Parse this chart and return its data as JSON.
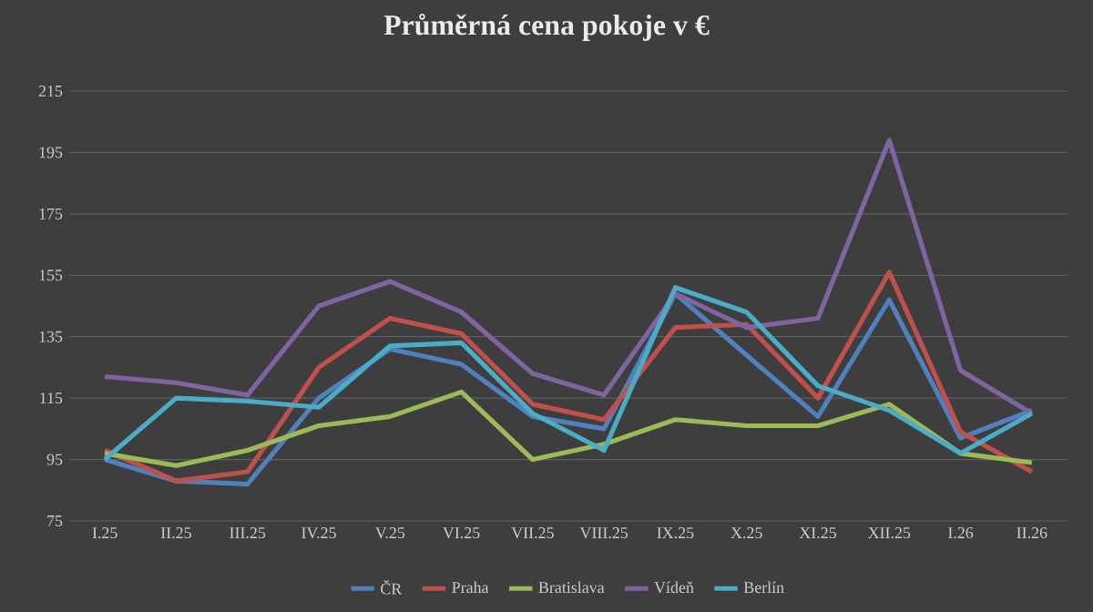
{
  "chart_data": {
    "type": "line",
    "title": "Průměrná cena pokoje v €",
    "categories": [
      "I.25",
      "II.25",
      "III.25",
      "IV.25",
      "V.25",
      "VI.25",
      "VII.25",
      "VIII.25",
      "IX.25",
      "X.25",
      "XI.25",
      "XII.25",
      "I.26",
      "II.26"
    ],
    "series": [
      {
        "name": "ČR",
        "color": "#4f81bd",
        "values": [
          95,
          88,
          87,
          115,
          131,
          126,
          109,
          105,
          149,
          129,
          109,
          147,
          102,
          111
        ]
      },
      {
        "name": "Praha",
        "color": "#c0504d",
        "values": [
          98,
          88,
          91,
          125,
          141,
          136,
          113,
          108,
          138,
          139,
          115,
          156,
          104,
          91
        ]
      },
      {
        "name": "Bratislava",
        "color": "#9bbb59",
        "values": [
          97,
          93,
          98,
          106,
          109,
          117,
          95,
          100,
          108,
          106,
          106,
          113,
          97,
          94
        ]
      },
      {
        "name": "Vídeň",
        "color": "#8064a2",
        "values": [
          122,
          120,
          116,
          145,
          153,
          143,
          123,
          116,
          149,
          138,
          141,
          199,
          124,
          110
        ]
      },
      {
        "name": "Berlín",
        "color": "#4bacc6",
        "values": [
          95,
          115,
          114,
          112,
          132,
          133,
          110,
          98,
          151,
          143,
          119,
          111,
          97,
          110
        ]
      }
    ],
    "ylim": [
      75,
      215
    ],
    "yticks": [
      75,
      95,
      115,
      135,
      155,
      175,
      195,
      215
    ],
    "grid": "y",
    "legend": "bottom",
    "marker": "none",
    "line_style": "solid"
  }
}
